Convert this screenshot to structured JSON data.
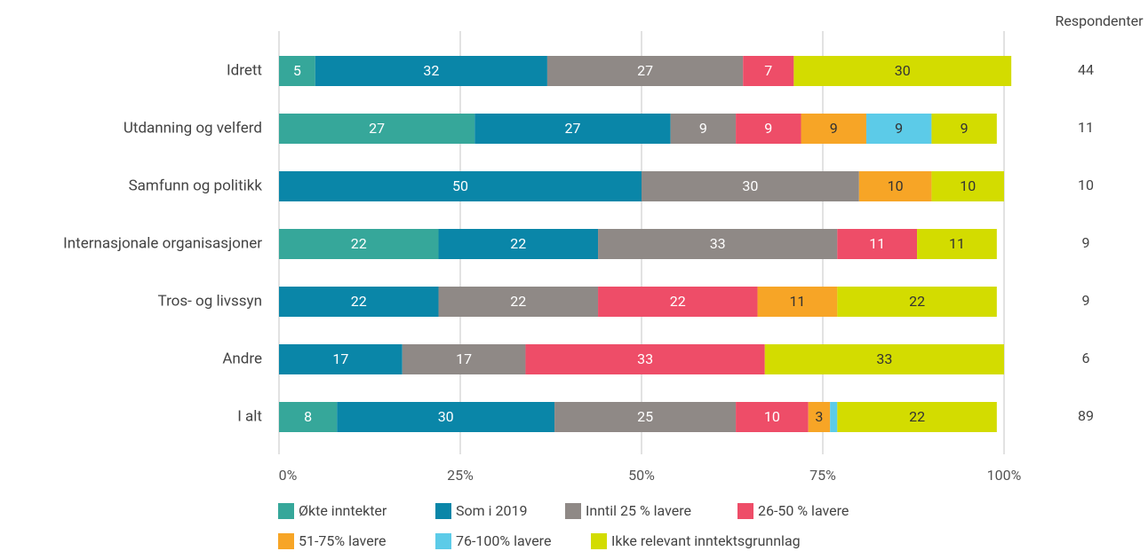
{
  "chart_data": {
    "type": "stacked_barh",
    "categories": [
      "Idrett",
      "Utdanning og velferd",
      "Samfunn og politikk",
      "Internasjonale organisasjoner",
      "Tros- og livssyn",
      "Andre",
      "I alt"
    ],
    "series": [
      {
        "name": "Økte inntekter",
        "color": "#36a79a",
        "values": [
          5,
          27,
          null,
          22,
          null,
          null,
          8
        ]
      },
      {
        "name": "Som i 2019",
        "color": "#0a86a8",
        "values": [
          32,
          27,
          50,
          22,
          22,
          17,
          30
        ]
      },
      {
        "name": "Inntil 25 % lavere",
        "color": "#8f8986",
        "values": [
          27,
          9,
          30,
          33,
          22,
          17,
          25
        ]
      },
      {
        "name": "26-50 % lavere",
        "color": "#ee4d68",
        "values": [
          7,
          9,
          null,
          11,
          22,
          33,
          10
        ]
      },
      {
        "name": "51-75% lavere",
        "color": "#f7a526",
        "values": [
          null,
          9,
          10,
          null,
          11,
          null,
          3
        ]
      },
      {
        "name": "76-100% lavere",
        "color": "#5ccbe8",
        "values": [
          null,
          9,
          null,
          null,
          null,
          null,
          1
        ]
      },
      {
        "name": "Ikke relevant inntektsgrunnlag",
        "color": "#d3dc00",
        "values": [
          30,
          9,
          10,
          11,
          22,
          33,
          22
        ]
      }
    ],
    "xlim": [
      0,
      100
    ],
    "xticks": [
      {
        "value": 0,
        "label": "0%"
      },
      {
        "value": 25,
        "label": "25%"
      },
      {
        "value": 50,
        "label": "50%"
      },
      {
        "value": 75,
        "label": "75%"
      },
      {
        "value": 100,
        "label": "100%"
      }
    ],
    "grid": true,
    "legend": "bottom",
    "respondents": {
      "title": "Respondenter",
      "values": [
        44,
        11,
        10,
        9,
        9,
        6,
        89
      ]
    }
  }
}
